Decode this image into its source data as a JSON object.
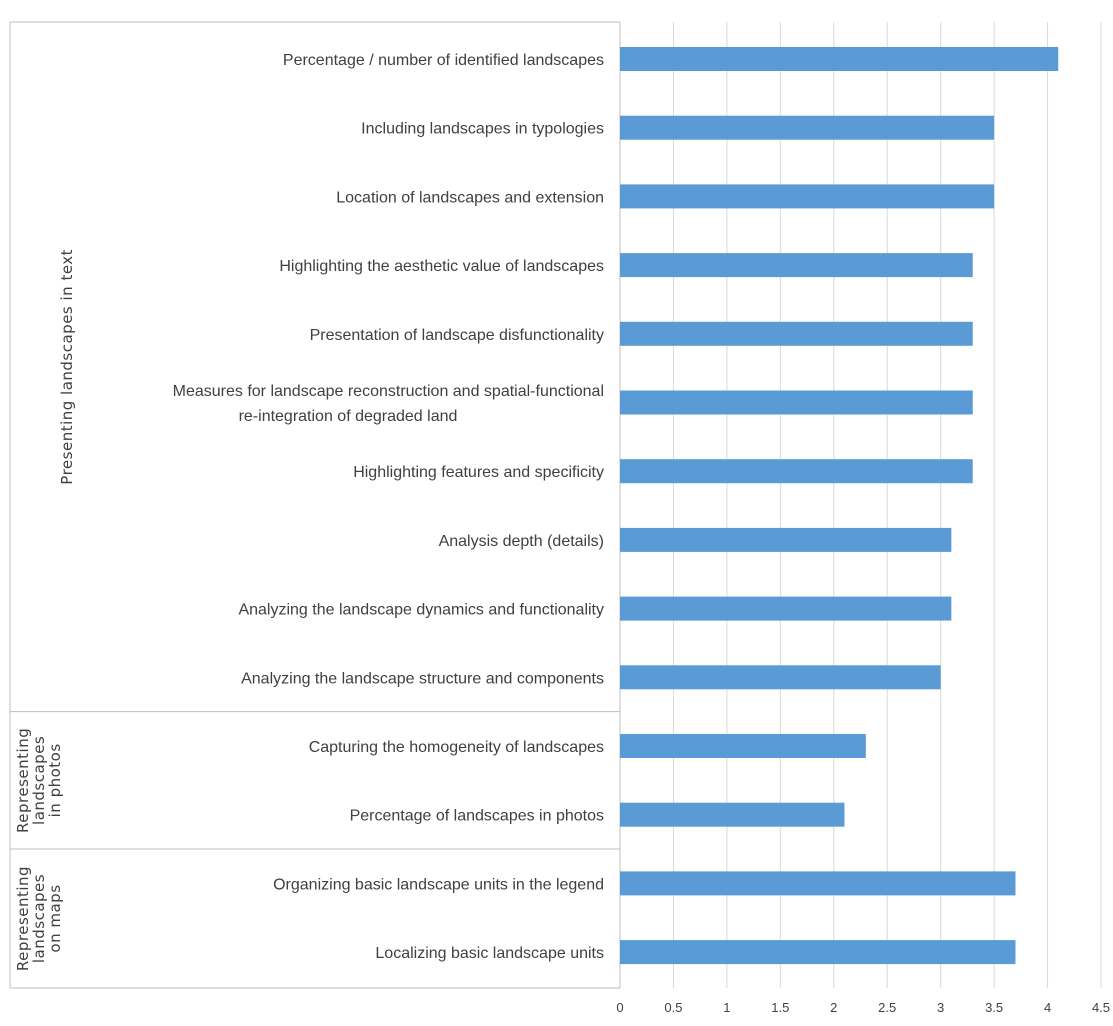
{
  "chart_data": {
    "type": "bar",
    "orientation": "horizontal",
    "title": "",
    "xlabel": "",
    "ylabel": "",
    "xlim": [
      0,
      4.5
    ],
    "xticks": [
      "0",
      "0.5",
      "1",
      "1.5",
      "2",
      "2.5",
      "3",
      "3.5",
      "4",
      "4.5"
    ],
    "grid": true,
    "bar_color": "#5b9bd5",
    "groups": [
      {
        "label": "Presenting landscapes in text",
        "categories": [
          {
            "label": "Percentage / number of identified landscapes",
            "value": 4.1
          },
          {
            "label": "Including landscapes in typologies",
            "value": 3.5
          },
          {
            "label": "Location of landscapes and extension",
            "value": 3.5
          },
          {
            "label": "Highlighting the aesthetic value of landscapes",
            "value": 3.3
          },
          {
            "label": "Presentation of landscape disfunctionality",
            "value": 3.3
          },
          {
            "label": "Measures for landscape reconstruction and spatial-functional re-integration of degraded land",
            "value": 3.3
          },
          {
            "label": "Highlighting features and specificity",
            "value": 3.3
          },
          {
            "label": "Analysis depth (details)",
            "value": 3.1
          },
          {
            "label": "Analyzing the landscape dynamics and functionality",
            "value": 3.1
          },
          {
            "label": "Analyzing the landscape structure and components",
            "value": 3.0
          }
        ]
      },
      {
        "label": "Representing landscapes in photos",
        "categories": [
          {
            "label": "Capturing the homogeneity of landscapes",
            "value": 2.3
          },
          {
            "label": "Percentage of landscapes in photos",
            "value": 2.1
          }
        ]
      },
      {
        "label": "Representing landscapes on maps",
        "categories": [
          {
            "label": "Organizing basic landscape units in the legend",
            "value": 3.7
          },
          {
            "label": "Localizing basic landscape units",
            "value": 3.7
          }
        ]
      }
    ]
  }
}
